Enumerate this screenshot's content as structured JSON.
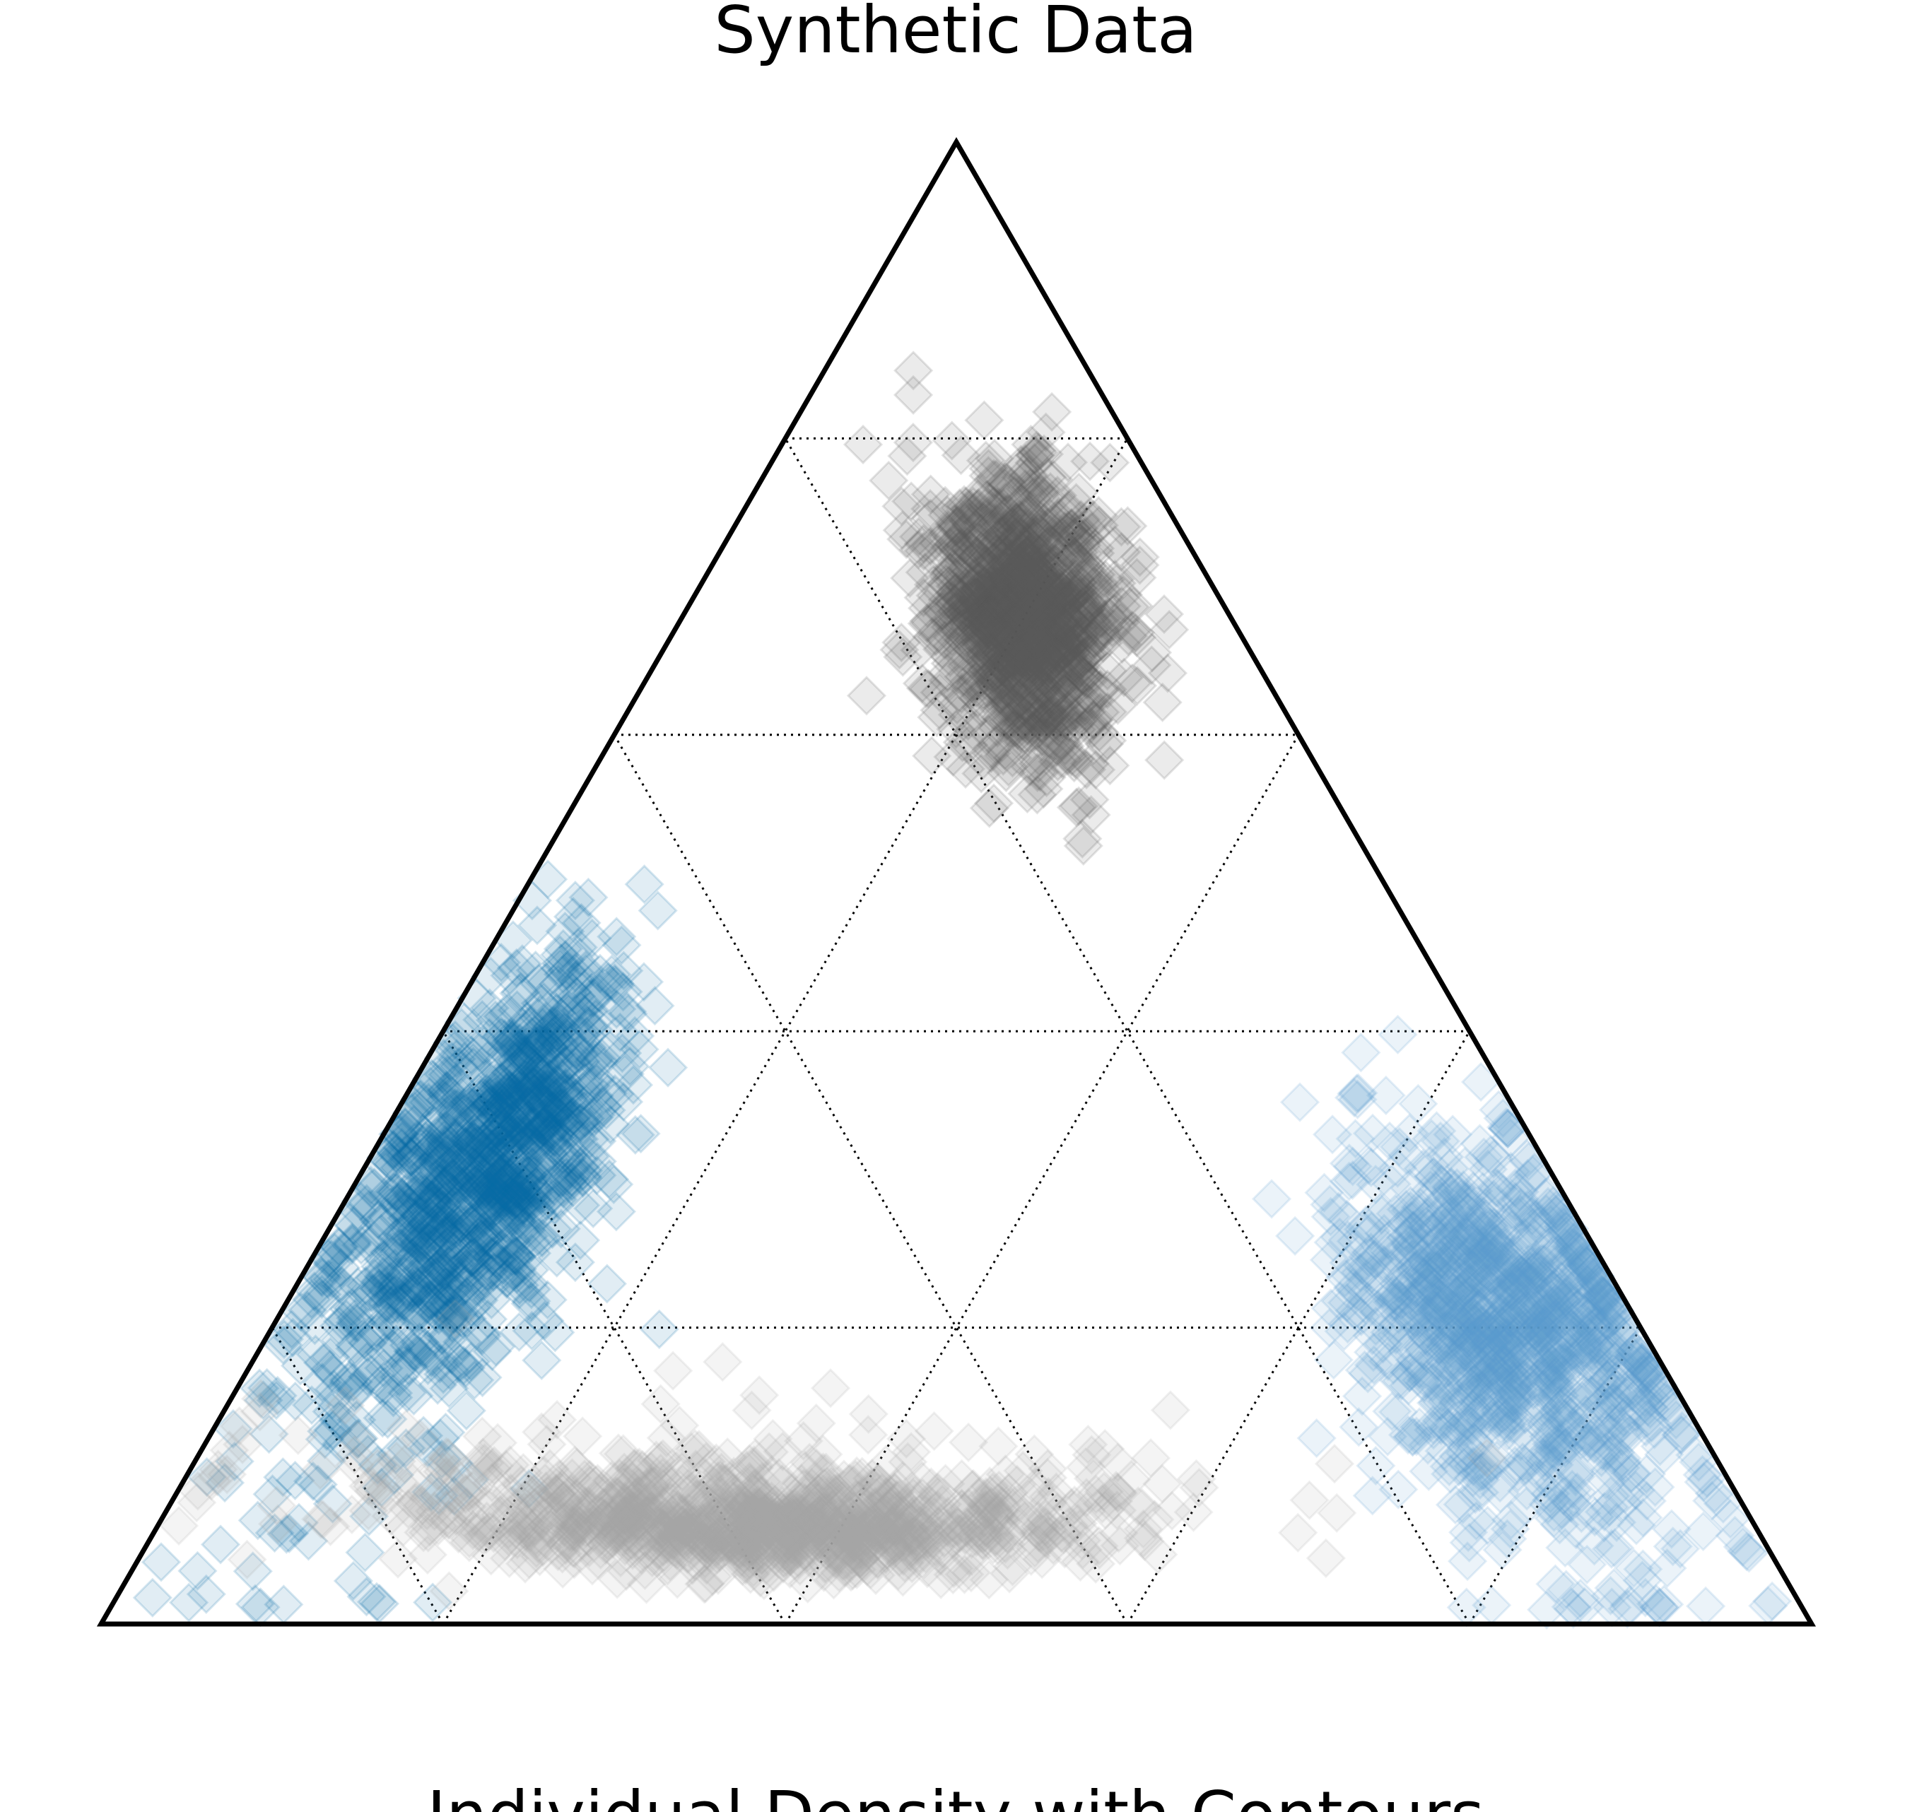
{
  "chart_data": {
    "type": "scatter",
    "subtype": "ternary",
    "title": "Synthetic Data",
    "xlabel": "Individual Density with Contours",
    "axis_range": [
      0,
      1
    ],
    "gridlines": [
      0.2,
      0.4,
      0.6,
      0.8
    ],
    "grid": true,
    "legend": "none",
    "marker": "diamond",
    "series": [
      {
        "color": "#595959",
        "opacity": 0.12,
        "center": [
          0.12,
          0.68,
          0.2
        ],
        "spread": [
          0.035,
          0.1,
          0.04
        ],
        "count": 1100
      },
      {
        "color": "#076CA8",
        "opacity": 0.12,
        "center": [
          0.63,
          0.3,
          0.07
        ],
        "spread": [
          0.07,
          0.11,
          0.035
        ],
        "count": 1100
      },
      {
        "color": "#5B9BD0",
        "opacity": 0.12,
        "center": [
          0.08,
          0.2,
          0.72
        ],
        "spread": [
          0.05,
          0.08,
          0.07
        ],
        "count": 1100
      },
      {
        "color": "#A6A6A6",
        "opacity": 0.12,
        "center": [
          0.58,
          0.07,
          0.35
        ],
        "spread": [
          0.14,
          0.015,
          0.14
        ],
        "count": 1100
      }
    ]
  }
}
